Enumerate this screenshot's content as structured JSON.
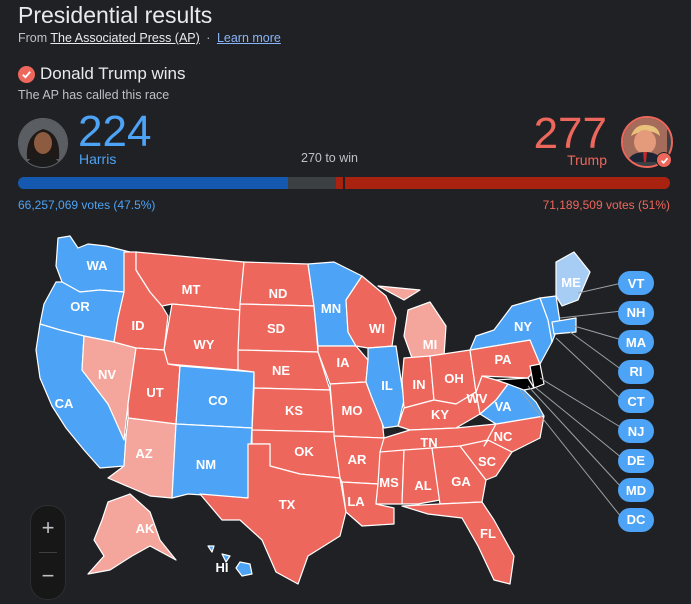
{
  "header": {
    "title": "Presidential results",
    "source_prefix": "From",
    "source_name": "The Associated Press (AP)",
    "separator": "·",
    "learn_more": "Learn more"
  },
  "result": {
    "headline": "Donald Trump wins",
    "called_text": "The AP has called this race"
  },
  "candidates": {
    "harris": {
      "name": "Harris",
      "electoral_votes": "224",
      "popular": "66,257,069 votes (47.5%)",
      "color": "#4da3f5",
      "share": 0.4146
    },
    "trump": {
      "name": "Trump",
      "electoral_votes": "277",
      "popular": "71,189,509 votes (51%)",
      "color": "#ee675c",
      "share": 0.513
    }
  },
  "to_win": "270 to win",
  "states": {
    "WA": {
      "label": "WA",
      "winner": "D"
    },
    "OR": {
      "label": "OR",
      "winner": "D"
    },
    "CA": {
      "label": "CA",
      "winner": "D"
    },
    "NV": {
      "label": "NV",
      "winner": "R-lean"
    },
    "ID": {
      "label": "ID",
      "winner": "R"
    },
    "MT": {
      "label": "MT",
      "winner": "R"
    },
    "WY": {
      "label": "WY",
      "winner": "R"
    },
    "UT": {
      "label": "UT",
      "winner": "R"
    },
    "AZ": {
      "label": "AZ",
      "winner": "R-lean"
    },
    "CO": {
      "label": "CO",
      "winner": "D"
    },
    "NM": {
      "label": "NM",
      "winner": "D"
    },
    "ND": {
      "label": "ND",
      "winner": "R"
    },
    "SD": {
      "label": "SD",
      "winner": "R"
    },
    "NE": {
      "label": "NE",
      "winner": "R"
    },
    "KS": {
      "label": "KS",
      "winner": "R"
    },
    "OK": {
      "label": "OK",
      "winner": "R"
    },
    "TX": {
      "label": "TX",
      "winner": "R"
    },
    "MN": {
      "label": "MN",
      "winner": "D"
    },
    "IA": {
      "label": "IA",
      "winner": "R"
    },
    "MO": {
      "label": "MO",
      "winner": "R"
    },
    "AR": {
      "label": "AR",
      "winner": "R"
    },
    "LA": {
      "label": "LA",
      "winner": "R"
    },
    "WI": {
      "label": "WI",
      "winner": "R"
    },
    "IL": {
      "label": "IL",
      "winner": "D"
    },
    "MI": {
      "label": "MI",
      "winner": "R-lean"
    },
    "IN": {
      "label": "IN",
      "winner": "R"
    },
    "OH": {
      "label": "OH",
      "winner": "R"
    },
    "KY": {
      "label": "KY",
      "winner": "R"
    },
    "TN": {
      "label": "TN",
      "winner": "R"
    },
    "MS": {
      "label": "MS",
      "winner": "R"
    },
    "AL": {
      "label": "AL",
      "winner": "R"
    },
    "GA": {
      "label": "GA",
      "winner": "R"
    },
    "FL": {
      "label": "FL",
      "winner": "R"
    },
    "SC": {
      "label": "SC",
      "winner": "R"
    },
    "NC": {
      "label": "NC",
      "winner": "R"
    },
    "VA": {
      "label": "VA",
      "winner": "D"
    },
    "WV": {
      "label": "WV",
      "winner": "R"
    },
    "PA": {
      "label": "PA",
      "winner": "R"
    },
    "NY": {
      "label": "NY",
      "winner": "D"
    },
    "ME": {
      "label": "ME",
      "winner": "D-lean"
    },
    "AK": {
      "label": "AK",
      "winner": "R-lean"
    },
    "HI": {
      "label": "HI",
      "winner": "D"
    }
  },
  "small_states": [
    "VT",
    "NH",
    "MA",
    "RI",
    "CT",
    "NJ",
    "DE",
    "MD",
    "DC"
  ],
  "colors": {
    "dem": "#4da3f5",
    "rep": "#ee675c",
    "rep_lean": "#f4a59c",
    "dem_lean": "#a8cdf4",
    "background": "#202124"
  },
  "zoom": {
    "in": "+",
    "out": "−"
  }
}
